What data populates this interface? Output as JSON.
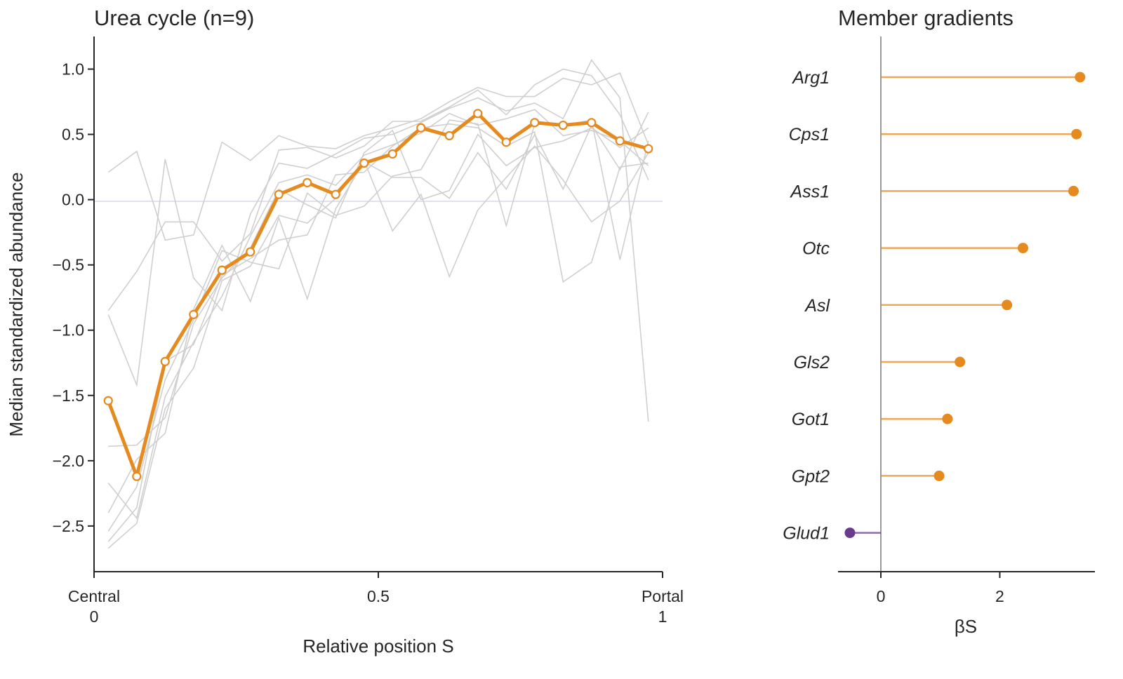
{
  "chart_data": [
    {
      "type": "line",
      "title": "Urea cycle  (n=9)",
      "xlabel": "Relative position S",
      "ylabel": "Median standardized abundance",
      "xlim": [
        0,
        1
      ],
      "ylim": [
        -2.85,
        1.25
      ],
      "x_ticks": [
        {
          "value": 0,
          "label": "Central\n0"
        },
        {
          "value": 0.5,
          "label": "0.5"
        },
        {
          "value": 1,
          "label": "Portal\n1"
        }
      ],
      "y_ticks": [
        {
          "value": 1.0,
          "label": "1.0"
        },
        {
          "value": 0.5,
          "label": "0.5"
        },
        {
          "value": 0.0,
          "label": "0.0"
        },
        {
          "value": -0.5,
          "label": "−0.5"
        },
        {
          "value": -1.0,
          "label": "−1.0"
        },
        {
          "value": -1.5,
          "label": "−1.5"
        },
        {
          "value": -2.0,
          "label": "−2.0"
        },
        {
          "value": -2.5,
          "label": "−2.5"
        }
      ],
      "zero_line": true,
      "grid": false,
      "x": [
        0.025,
        0.075,
        0.125,
        0.175,
        0.225,
        0.275,
        0.325,
        0.375,
        0.425,
        0.475,
        0.525,
        0.575,
        0.625,
        0.675,
        0.725,
        0.775,
        0.825,
        0.875,
        0.925,
        0.975
      ],
      "median": {
        "color": "#e58a1f",
        "values": [
          -1.54,
          -2.12,
          -1.24,
          -0.88,
          -0.54,
          -0.4,
          0.04,
          0.13,
          0.04,
          0.28,
          0.35,
          0.55,
          0.49,
          0.66,
          0.44,
          0.59,
          0.57,
          0.59,
          0.45,
          0.39
        ]
      },
      "members": [
        {
          "values": [
            0.21,
            0.37,
            -0.31,
            -0.27,
            0.44,
            0.3,
            0.49,
            0.41,
            0.39,
            0.49,
            0.55,
            0.62,
            0.75,
            0.86,
            0.79,
            0.79,
            0.93,
            0.88,
            0.97,
            0.42
          ]
        },
        {
          "values": [
            -0.85,
            -0.55,
            -0.17,
            -0.17,
            -0.47,
            -0.26,
            0.38,
            0.4,
            0.32,
            0.41,
            0.6,
            0.6,
            0.71,
            0.84,
            0.65,
            0.88,
            1.0,
            0.95,
            0.65,
            0.15
          ]
        },
        {
          "values": [
            -0.88,
            -1.42,
            0.31,
            -0.6,
            -0.85,
            -0.11,
            0.28,
            0.24,
            0.35,
            0.47,
            0.5,
            0.59,
            0.7,
            0.78,
            0.68,
            0.74,
            0.62,
            1.07,
            0.78,
            -1.7
          ]
        },
        {
          "values": [
            -2.17,
            -2.44,
            -1.51,
            -1.09,
            -0.74,
            -0.28,
            0.13,
            0.19,
            0.11,
            0.34,
            0.42,
            0.51,
            0.66,
            0.57,
            0.62,
            0.69,
            0.49,
            0.53,
            0.45,
            0.26
          ]
        },
        {
          "values": [
            -2.4,
            -1.99,
            -1.79,
            -0.84,
            -0.35,
            -0.78,
            -0.14,
            -0.76,
            -0.07,
            0.29,
            0.17,
            0.17,
            0.01,
            0.36,
            0.08,
            0.5,
            0.08,
            0.57,
            0.23,
            0.67
          ]
        },
        {
          "values": [
            -2.62,
            -2.36,
            -1.24,
            -1.11,
            -0.58,
            -0.45,
            -0.31,
            -0.27,
            0.19,
            0.21,
            0.41,
            0.55,
            0.58,
            0.55,
            0.41,
            0.52,
            -0.63,
            -0.48,
            0.25,
            0.28
          ]
        },
        {
          "values": [
            -2.54,
            -2.2,
            -1.38,
            -0.92,
            -0.39,
            -0.48,
            -0.53,
            0.05,
            -0.12,
            -0.05,
            0.18,
            0.23,
            0.61,
            0.58,
            -0.2,
            0.58,
            0.57,
            0.61,
            -0.46,
            0.45
          ]
        },
        {
          "values": [
            -2.67,
            -2.48,
            -1.6,
            -1.29,
            -0.62,
            -0.51,
            -0.12,
            -0.18,
            0.01,
            0.3,
            -0.24,
            0.04,
            -0.59,
            -0.08,
            0.17,
            0.41,
            0.15,
            -0.17,
            -0.01,
            0.36
          ]
        },
        {
          "values": [
            -1.89,
            -1.88,
            -1.67,
            -0.95,
            -0.6,
            -0.37,
            0.08,
            -0.04,
            -0.14,
            0.36,
            0.53,
            0.0,
            0.07,
            0.5,
            0.26,
            0.4,
            0.45,
            0.55,
            0.4,
            0.55
          ]
        }
      ]
    },
    {
      "type": "lollipop",
      "title": "Member gradients",
      "xlabel": "βS",
      "xlim": [
        -0.72,
        3.6
      ],
      "x_ticks": [
        {
          "value": 0,
          "label": "0"
        },
        {
          "value": 2,
          "label": "2"
        }
      ],
      "categories": [
        "Arg1",
        "Cps1",
        "Ass1",
        "Otc",
        "Asl",
        "Gls2",
        "Got1",
        "Gpt2",
        "Glud1"
      ],
      "values": [
        3.35,
        3.29,
        3.24,
        2.39,
        2.12,
        1.33,
        1.12,
        0.98,
        -0.52
      ],
      "positive_color": "#e58a1f",
      "negative_color": "#6b3a8c"
    }
  ]
}
